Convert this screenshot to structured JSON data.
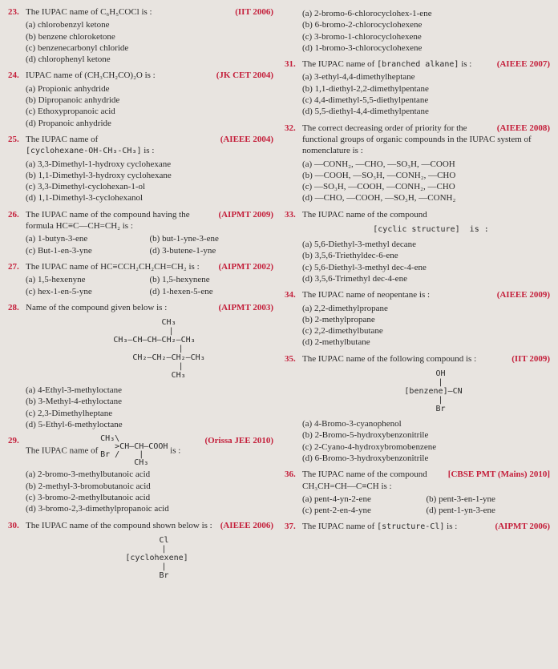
{
  "questions": [
    {
      "num": "23.",
      "text": "The IUPAC name of C₆H₅COCl is :",
      "tag": "(IIT 2006)",
      "opts": [
        {
          "l": "(a)",
          "t": "chlorobenzyl ketone"
        },
        {
          "l": "(b)",
          "t": "benzene chloroketone"
        },
        {
          "l": "(c)",
          "t": "benzenecarbonyl chloride"
        },
        {
          "l": "(d)",
          "t": "chlorophenyl ketone"
        }
      ],
      "col": "L"
    },
    {
      "num": "24.",
      "text": "IUPAC name of (CH₃CH₂CO)₂O is :",
      "tag": "(JK CET 2004)",
      "opts": [
        {
          "l": "(a)",
          "t": "Propionic anhydride"
        },
        {
          "l": "(b)",
          "t": "Dipropanoic anhydride"
        },
        {
          "l": "(c)",
          "t": "Ethoxypropanoic acid"
        },
        {
          "l": "(d)",
          "t": "Propanoic anhydride"
        }
      ],
      "col": "L"
    },
    {
      "num": "25.",
      "text": "The IUPAC name of",
      "struct_inline": "[cyclohexane-OH-CH₃-CH₃]",
      "post": "is :",
      "tag": "(AIEEE 2004)",
      "opts": [
        {
          "l": "(a)",
          "t": "3,3-Dimethyl-1-hydroxy cyclohexane"
        },
        {
          "l": "(b)",
          "t": "1,1-Dimethyl-3-hydroxy cyclohexane"
        },
        {
          "l": "(c)",
          "t": "3,3-Dimethyl-cyclohexan-1-ol"
        },
        {
          "l": "(d)",
          "t": "1,1-Dimethyl-3-cyclohexanol"
        }
      ],
      "col": "L"
    },
    {
      "num": "26.",
      "text": "The IUPAC name of the compound having the formula HC≡C—CH=CH₂ is :",
      "tag": "(AIPMT 2009)",
      "two": true,
      "opts": [
        {
          "l": "(a)",
          "t": "1-butyn-3-ene"
        },
        {
          "l": "(b)",
          "t": "but-1-yne-3-ene"
        },
        {
          "l": "(c)",
          "t": "But-1-en-3-yne"
        },
        {
          "l": "(d)",
          "t": "3-butene-1-yne"
        }
      ],
      "col": "L"
    },
    {
      "num": "27.",
      "text": "The IUPAC name of HC≡CCH₂CH₂CH=CH₂ is :",
      "tag": "(AIPMT 2002)",
      "two": true,
      "opts": [
        {
          "l": "(a)",
          "t": "1,5-hexenyne"
        },
        {
          "l": "(b)",
          "t": "1,5-hexynene"
        },
        {
          "l": "(c)",
          "t": "hex-1-en-5-yne"
        },
        {
          "l": "(d)",
          "t": "1-hexen-5-ene"
        }
      ],
      "col": "L"
    },
    {
      "num": "28.",
      "text": "Name of the compound given below is :",
      "tag": "(AIPMT 2003)",
      "struct": "        CH₃\n         |\n  CH₃—CH—CH—CH₂—CH₃\n             |\n        CH₂—CH₂—CH₂—CH₃\n             |\n            CH₃",
      "opts": [
        {
          "l": "(a)",
          "t": "4-Ethyl-3-methyloctane"
        },
        {
          "l": "(b)",
          "t": "3-Methyl-4-ethyloctane"
        },
        {
          "l": "(c)",
          "t": "2,3-Dimethylheptane"
        },
        {
          "l": "(d)",
          "t": "5-Ethyl-6-methyloctane"
        }
      ],
      "col": "L"
    },
    {
      "num": "29.",
      "text": "The IUPAC name of",
      "struct_inline": "CH₃\\\n   >CH—CH—COOH\nBr /    |\n       CH₃",
      "post": "is :",
      "tag": "(Orissa JEE 2010)",
      "opts": [
        {
          "l": "(a)",
          "t": "2-bromo-3-methylbutanoic acid"
        },
        {
          "l": "(b)",
          "t": "2-methyl-3-bromobutanoic acid"
        },
        {
          "l": "",
          "t": ""
        },
        {
          "l": "(c)",
          "t": "3-bromo-2-methylbutanoic acid"
        },
        {
          "l": "(d)",
          "t": "3-bromo-2,3-dimethylpropanoic acid"
        }
      ],
      "col": "L"
    },
    {
      "num": "30.",
      "text": "The IUPAC name of the compound shown below is :",
      "tag": "(AIEEE 2006)",
      "struct": "      Cl\n      |\n   [cyclohexene]\n      |\n      Br",
      "opts": [],
      "col": "L"
    },
    {
      "num": "",
      "text": "",
      "opts": [
        {
          "l": "(a)",
          "t": "2-bromo-6-chlorocyclohex-1-ene"
        },
        {
          "l": "(b)",
          "t": "6-bromo-2-chlorocyclohexene"
        },
        {
          "l": "(c)",
          "t": "3-bromo-1-chlorocyclohexene"
        },
        {
          "l": "(d)",
          "t": "1-bromo-3-chlorocyclohexene"
        }
      ],
      "col": "R",
      "cont": true
    },
    {
      "num": "31.",
      "text": "The IUPAC name of",
      "struct_inline": "[branched alkane]",
      "post": "is :",
      "tag": "(AIEEE 2007)",
      "opts": [
        {
          "l": "(a)",
          "t": "3-ethyl-4,4-dimethylheptane"
        },
        {
          "l": "(b)",
          "t": "1,1-diethyl-2,2-dimethylpentane"
        },
        {
          "l": "(c)",
          "t": "4,4-dimethyl-5,5-diethylpentane"
        },
        {
          "l": "(d)",
          "t": "5,5-diethyl-4,4-dimethylpentane"
        }
      ],
      "col": "R"
    },
    {
      "num": "32.",
      "text": "The correct decreasing order of priority for the functional groups of organic compounds in the IUPAC system of nomenclature is :",
      "tag": "(AIEEE 2008)",
      "opts": [
        {
          "l": "(a)",
          "t": "—CONH₂, —CHO, —SO₃H, —COOH"
        },
        {
          "l": "(b)",
          "t": "—COOH, —SO₃H, —CONH₂, —CHO"
        },
        {
          "l": "(c)",
          "t": "—SO₃H, —COOH, —CONH₂, —CHO"
        },
        {
          "l": "(d)",
          "t": "—CHO, —COOH, —SO₃H, —CONH₂"
        }
      ],
      "col": "R"
    },
    {
      "num": "33.",
      "text": "The IUPAC name of the compound",
      "struct": "  [cyclic structure]  is :",
      "opts": [
        {
          "l": "(a)",
          "t": "5,6-Diethyl-3-methyl decane"
        },
        {
          "l": "(b)",
          "t": "3,5,6-Triethyldec-6-ene"
        },
        {
          "l": "(c)",
          "t": "5,6-Diethyl-3-methyl dec-4-ene"
        },
        {
          "l": "(d)",
          "t": "3,5,6-Trimethyl dec-4-ene"
        }
      ],
      "col": "R"
    },
    {
      "num": "34.",
      "text": "The IUPAC name of neopentane is :",
      "tag": "(AIEEE 2009)",
      "opts": [
        {
          "l": "(a)",
          "t": "2,2-dimethylpropane"
        },
        {
          "l": "(b)",
          "t": "2-methylpropane"
        },
        {
          "l": "(c)",
          "t": "2,2-dimethylbutane"
        },
        {
          "l": "(d)",
          "t": "2-methylbutane"
        }
      ],
      "col": "R"
    },
    {
      "num": "35.",
      "text": "The IUPAC name of the following compound is :",
      "tag": "(IIT 2009)",
      "struct": "      OH\n      |\n   [benzene]—CN\n      |\n      Br",
      "opts": [
        {
          "l": "(a)",
          "t": "4-Bromo-3-cyanophenol"
        },
        {
          "l": "(b)",
          "t": "2-Bromo-5-hydroxybenzonitrile"
        },
        {
          "l": "(c)",
          "t": "2-Cyano-4-hydroxybromobenzene"
        },
        {
          "l": "(d)",
          "t": "6-Bromo-3-hydroxybenzonitrile"
        }
      ],
      "col": "R"
    },
    {
      "num": "36.",
      "text": "The IUPAC name of the compound CH₃CH=CH—C≡CH is :",
      "tag": "[CBSE PMT (Mains) 2010]",
      "two": true,
      "opts": [
        {
          "l": "(a)",
          "t": "pent-4-yn-2-ene"
        },
        {
          "l": "(b)",
          "t": "pent-3-en-1-yne"
        },
        {
          "l": "(c)",
          "t": "pent-2-en-4-yne"
        },
        {
          "l": "(d)",
          "t": "pent-1-yn-3-ene"
        }
      ],
      "col": "R"
    },
    {
      "num": "37.",
      "text": "The IUPAC name of",
      "struct_inline": "[structure-Cl]",
      "post": "is :",
      "tag": "(AIPMT 2006)",
      "opts": [],
      "col": "R"
    }
  ]
}
